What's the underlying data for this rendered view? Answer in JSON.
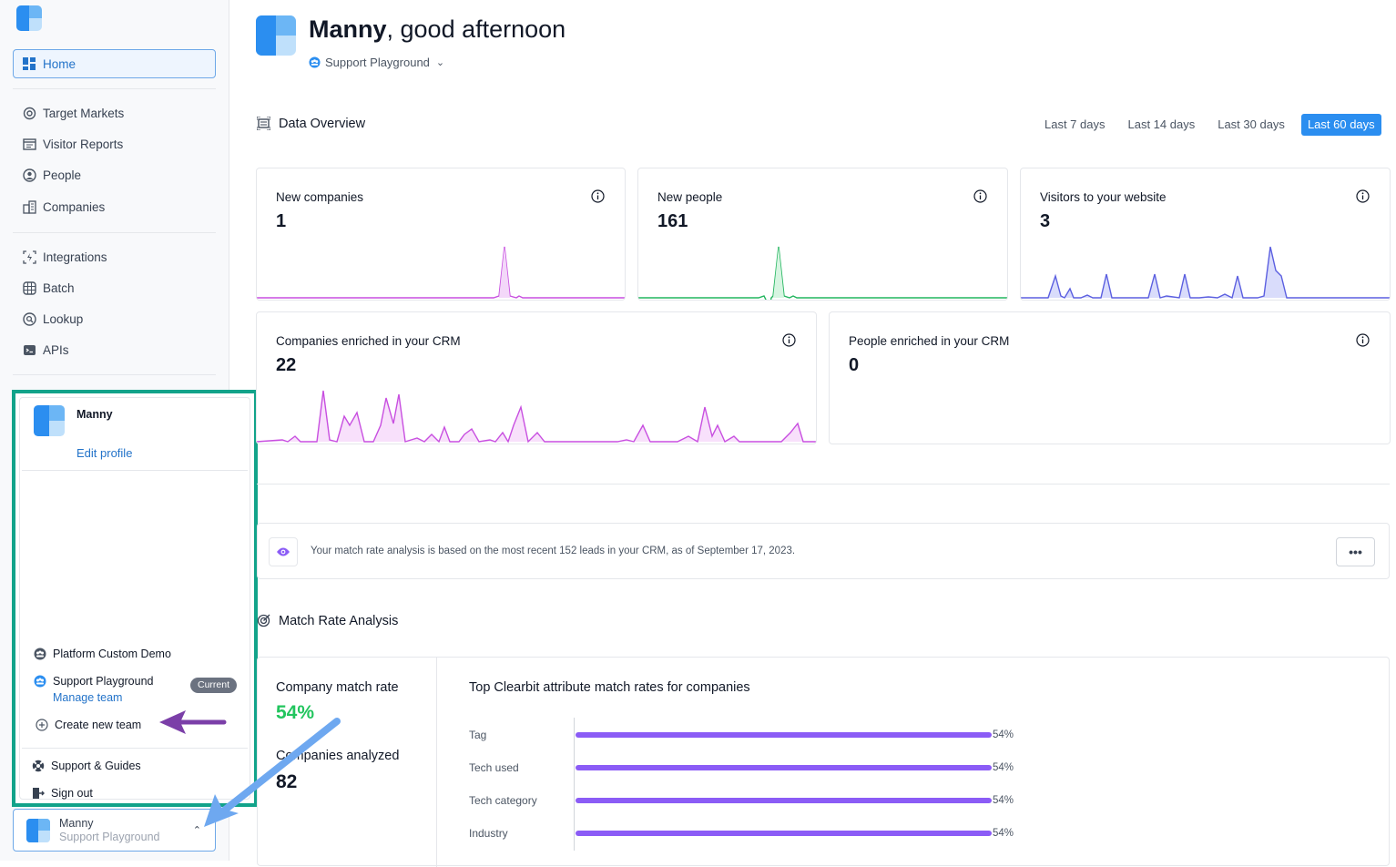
{
  "sidebar": {
    "home": "Home",
    "items": [
      {
        "label": "Target Markets",
        "icon": "target-icon"
      },
      {
        "label": "Visitor Reports",
        "icon": "report-icon"
      },
      {
        "label": "People",
        "icon": "people-icon"
      },
      {
        "label": "Companies",
        "icon": "building-icon"
      },
      {
        "label": "Integrations",
        "icon": "integrations-icon"
      },
      {
        "label": "Batch",
        "icon": "batch-icon"
      },
      {
        "label": "Lookup",
        "icon": "lookup-icon"
      },
      {
        "label": "APIs",
        "icon": "api-icon"
      }
    ]
  },
  "popup": {
    "user_name": "Manny",
    "edit_profile": "Edit profile",
    "teams": [
      {
        "name": "Platform Custom Demo"
      },
      {
        "name": "Support Playground",
        "badge": "Current",
        "sub": "Manage team"
      }
    ],
    "create_team": "Create new team",
    "support": "Support & Guides",
    "sign_out": "Sign out"
  },
  "account": {
    "name": "Manny",
    "team": "Support Playground"
  },
  "header": {
    "name": "Manny",
    "greeting_suffix": ", good afternoon",
    "team": "Support Playground"
  },
  "overview": {
    "title": "Data Overview",
    "ranges": [
      "Last 7 days",
      "Last 14 days",
      "Last 30 days",
      "Last 60 days"
    ],
    "active_range": "Last 60 days",
    "cards": [
      {
        "label": "New companies",
        "value": "1"
      },
      {
        "label": "New people",
        "value": "161"
      },
      {
        "label": "Visitors to your website",
        "value": "3"
      },
      {
        "label": "Companies enriched in your CRM",
        "value": "22"
      },
      {
        "label": "People enriched in your CRM",
        "value": "0"
      }
    ]
  },
  "notice": {
    "text": "Your match rate analysis is based on the most recent 152 leads in your CRM, as of September 17, 2023.",
    "more": "•••"
  },
  "match": {
    "title": "Match Rate Analysis",
    "company_rate_label": "Company match rate",
    "company_rate": "54%",
    "analyzed_label": "Companies analyzed",
    "analyzed": "82",
    "chart_title": "Top Clearbit attribute match rates for companies"
  },
  "chart_data": {
    "type": "bar",
    "title": "Top Clearbit attribute match rates for companies",
    "categories": [
      "Tag",
      "Tech used",
      "Tech category",
      "Industry"
    ],
    "values": [
      54,
      54,
      54,
      54
    ],
    "value_labels": [
      "54%",
      "54%",
      "54%",
      "54%"
    ],
    "orientation": "horizontal",
    "xlim": [
      0,
      100
    ],
    "grid": false,
    "bar_color": "#8b5cf6"
  },
  "colors": {
    "accent": "#2b8ef0",
    "annotation_box": "#12a38a",
    "arrow_blue": "#6ea8f0",
    "arrow_purple": "#7b3fa8",
    "match_green": "#22c55e"
  }
}
